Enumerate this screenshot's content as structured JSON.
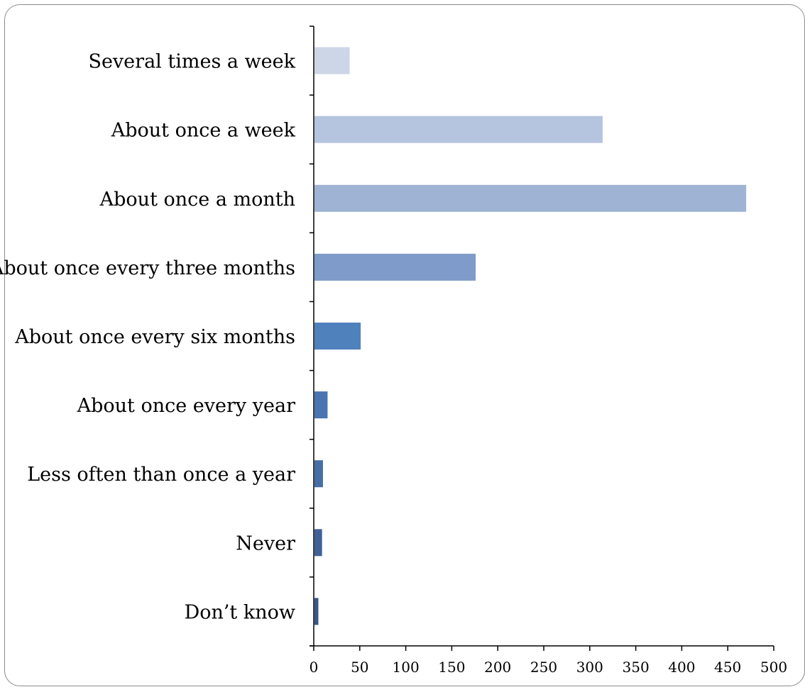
{
  "chart_data": {
    "type": "bar",
    "orientation": "horizontal",
    "categories": [
      "Several times a week",
      "About once a week",
      "About once a month",
      "About once every three months",
      "About once every six months",
      "About once every year",
      "Less often than once a year",
      "Never",
      "Don’t know"
    ],
    "values": [
      39,
      314,
      470,
      176,
      51,
      15,
      10,
      9,
      5
    ],
    "bar_colors": [
      "#cdd6e6",
      "#b5c4df",
      "#9fb3d4",
      "#7f9bc9",
      "#4f81bd",
      "#4a75b0",
      "#476ea6",
      "#3f6196",
      "#395686"
    ],
    "xlim": [
      0,
      500
    ],
    "xticks": [
      "0",
      "50",
      "100",
      "150",
      "200",
      "250",
      "300",
      "350",
      "400",
      "450",
      "500"
    ],
    "title": "",
    "xlabel": "",
    "ylabel": "",
    "grid": false,
    "legend": "none"
  }
}
